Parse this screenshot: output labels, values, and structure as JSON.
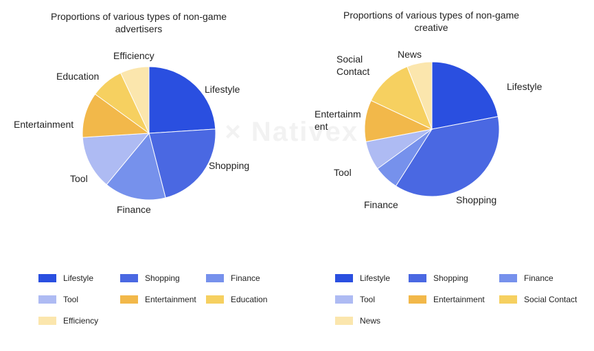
{
  "chart_data": [
    {
      "type": "pie",
      "title": "Proportions of various types of non-game advertisers",
      "categories": [
        "Lifestyle",
        "Shopping",
        "Finance",
        "Tool",
        "Entertainment",
        "Education",
        "Efficiency"
      ],
      "values": [
        24,
        22,
        15,
        13,
        11,
        8,
        7
      ],
      "colors": [
        "#2a4fe0",
        "#4a68e2",
        "#7691ec",
        "#aebbf3",
        "#f2b84a",
        "#f6d060",
        "#fbe6ad"
      ],
      "legend": "bottom"
    },
    {
      "type": "pie",
      "title": "Proportions of various types of non-game creative",
      "categories": [
        "Lifestyle",
        "Shopping",
        "Finance",
        "Tool",
        "Entertainment",
        "Social Contact",
        "News"
      ],
      "values": [
        22,
        37,
        6,
        7,
        10,
        12,
        6
      ],
      "colors": [
        "#2a4fe0",
        "#4a68e2",
        "#7691ec",
        "#aebbf3",
        "#f2b84a",
        "#f6d060",
        "#fbe6ad"
      ],
      "legend": "bottom"
    }
  ],
  "slice_labels": {
    "left": [
      "Lifestyle",
      "Shopping",
      "Finance",
      "Tool",
      "Entertainment",
      "Education",
      "Efficiency"
    ],
    "right": [
      "Lifestyle",
      "Shopping",
      "Finance",
      "Tool",
      "Entertainm\nent",
      "Social\nContact",
      "News"
    ]
  },
  "watermark": "MoPeta × Nativex"
}
